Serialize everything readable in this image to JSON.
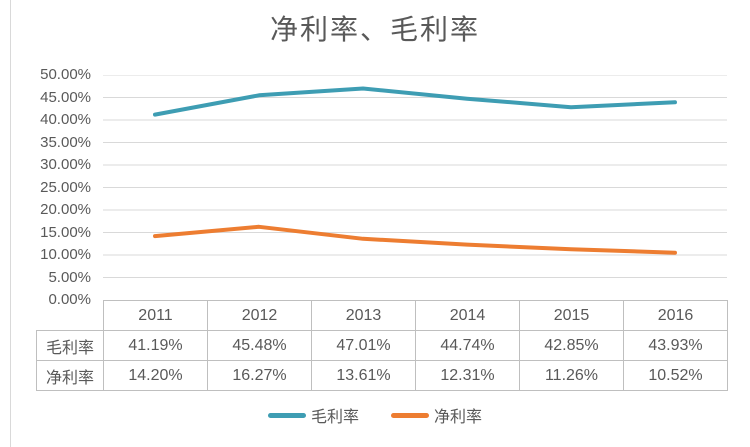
{
  "chart_data": {
    "type": "line",
    "title": "净利率、毛利率",
    "categories": [
      "2011",
      "2012",
      "2013",
      "2014",
      "2015",
      "2016"
    ],
    "series": [
      {
        "name": "毛利率",
        "color": "#3E9DB3",
        "values": [
          41.19,
          45.48,
          47.01,
          44.74,
          42.85,
          43.93
        ]
      },
      {
        "name": "净利率",
        "color": "#ED7D31",
        "values": [
          14.2,
          16.27,
          13.61,
          12.31,
          11.26,
          10.52
        ]
      }
    ],
    "xlabel": "",
    "ylabel": "",
    "ylim": [
      0,
      50
    ],
    "y_ticks": [
      "50.00%",
      "45.00%",
      "40.00%",
      "35.00%",
      "30.00%",
      "25.00%",
      "20.00%",
      "15.00%",
      "10.00%",
      "5.00%",
      "0.00%"
    ],
    "grid": true,
    "gridline_color": "#D9D9D9",
    "legend_position": "bottom",
    "data_table": {
      "rows": [
        {
          "header": "毛利率",
          "cells": [
            "41.19%",
            "45.48%",
            "47.01%",
            "44.74%",
            "42.85%",
            "43.93%"
          ]
        },
        {
          "header": "净利率",
          "cells": [
            "14.20%",
            "16.27%",
            "13.61%",
            "12.31%",
            "11.26%",
            "10.52%"
          ]
        }
      ]
    }
  },
  "legend": {
    "items": [
      {
        "label": "毛利率",
        "color": "#3E9DB3"
      },
      {
        "label": "净利率",
        "color": "#ED7D31"
      }
    ]
  }
}
